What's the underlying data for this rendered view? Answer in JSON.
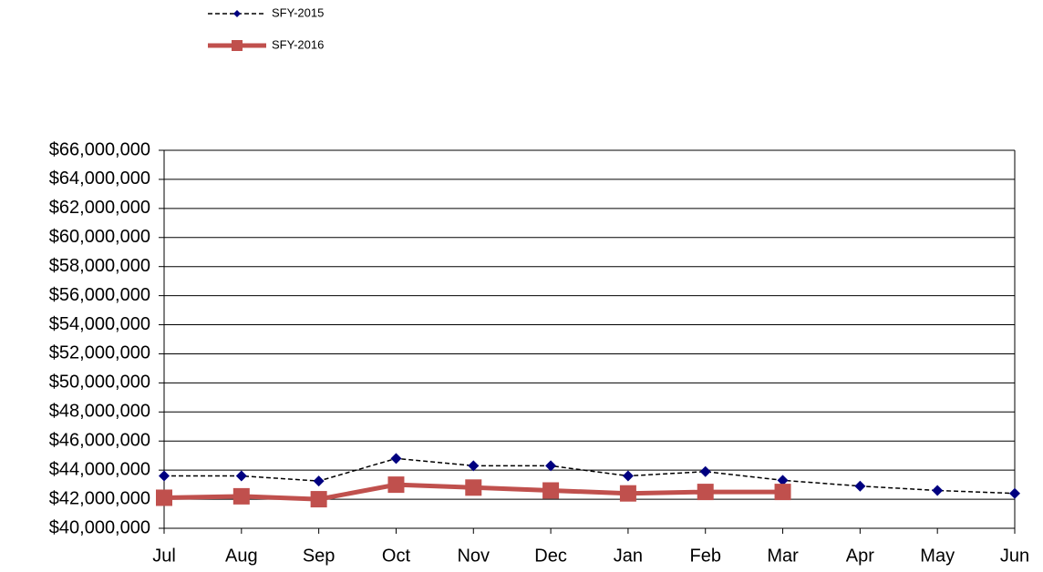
{
  "chart_data": {
    "type": "line",
    "categories": [
      "Jul",
      "Aug",
      "Sep",
      "Oct",
      "Nov",
      "Dec",
      "Jan",
      "Feb",
      "Mar",
      "Apr",
      "May",
      "Jun"
    ],
    "series": [
      {
        "name": "SFY-2015",
        "color": "#000080",
        "line_color": "#000000",
        "dashed": true,
        "marker": "diamond",
        "values": [
          43600000,
          43600000,
          43250000,
          44800000,
          44300000,
          44300000,
          43600000,
          43900000,
          43300000,
          42900000,
          42600000,
          42400000
        ]
      },
      {
        "name": "SFY-2016",
        "color": "#c0504d",
        "line_color": "#c0504d",
        "dashed": false,
        "marker": "square",
        "values": [
          42100000,
          42200000,
          42000000,
          43000000,
          42800000,
          42600000,
          42400000,
          42500000,
          42500000,
          null,
          null,
          null
        ]
      }
    ],
    "ylim": [
      40000000,
      66000000
    ],
    "yticks": [
      {
        "value": 40000000,
        "label": "$40,000,000"
      },
      {
        "value": 42000000,
        "label": "$42,000,000"
      },
      {
        "value": 44000000,
        "label": "$44,000,000"
      },
      {
        "value": 46000000,
        "label": "$46,000,000"
      },
      {
        "value": 48000000,
        "label": "$48,000,000"
      },
      {
        "value": 50000000,
        "label": "$50,000,000"
      },
      {
        "value": 52000000,
        "label": "$52,000,000"
      },
      {
        "value": 54000000,
        "label": "$54,000,000"
      },
      {
        "value": 56000000,
        "label": "$56,000,000"
      },
      {
        "value": 58000000,
        "label": "$58,000,000"
      },
      {
        "value": 60000000,
        "label": "$60,000,000"
      },
      {
        "value": 62000000,
        "label": "$62,000,000"
      },
      {
        "value": 64000000,
        "label": "$64,000,000"
      },
      {
        "value": 66000000,
        "label": "$66,000,000"
      }
    ],
    "grid": true
  }
}
